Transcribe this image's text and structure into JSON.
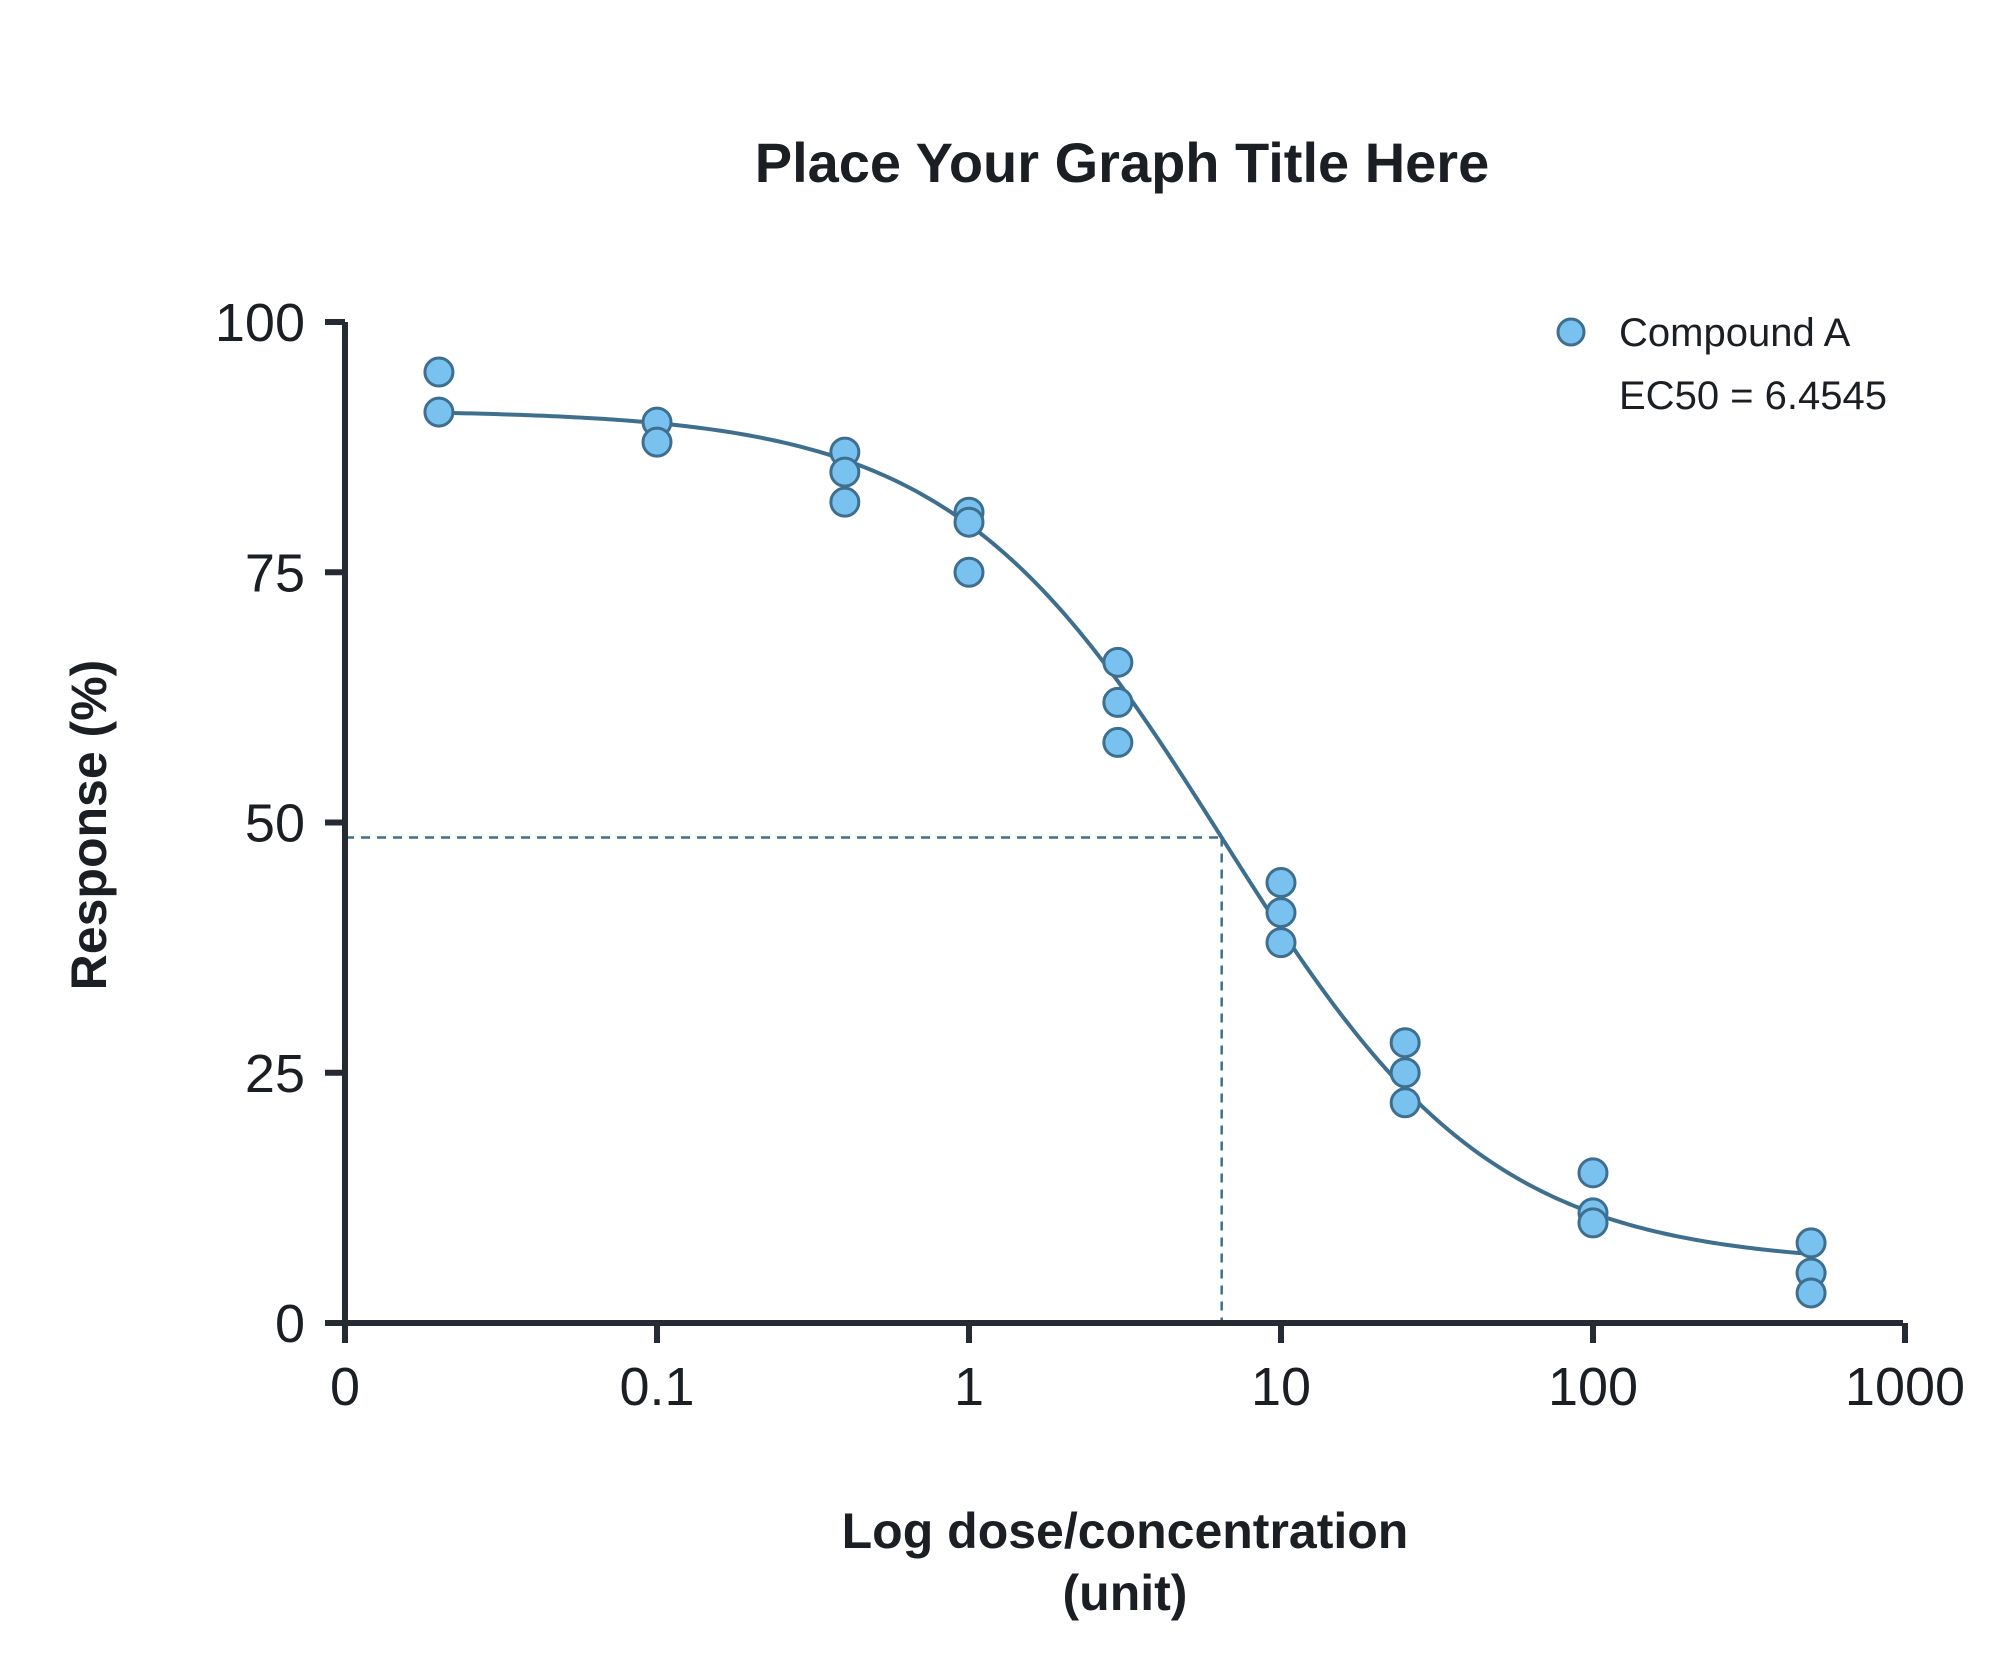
{
  "chart_data": {
    "type": "scatter",
    "title": "Place Your Graph Title Here",
    "xlabel_lines": [
      "Log dose/concentration",
      "(unit)"
    ],
    "ylabel": "Response (%)",
    "x_scale": "log",
    "x_ticks": [
      {
        "label": "0"
      },
      {
        "value": 0.1,
        "label": "0.1"
      },
      {
        "value": 1,
        "label": "1"
      },
      {
        "value": 10,
        "label": "10"
      },
      {
        "value": 100,
        "label": "100"
      },
      {
        "value": 1000,
        "label": "1000"
      }
    ],
    "ylim": [
      0,
      100
    ],
    "y_ticks": [
      0,
      25,
      50,
      75,
      100
    ],
    "grid": false,
    "legend_position": "top-right",
    "series": [
      {
        "name": "Compound A",
        "annotation": "EC50 = 6.4545",
        "color": "#79c2f0",
        "edge_color": "#3f6f8e",
        "points": [
          {
            "x": 0.02,
            "y": 95
          },
          {
            "x": 0.02,
            "y": 91
          },
          {
            "x": 0.1,
            "y": 90
          },
          {
            "x": 0.1,
            "y": 88
          },
          {
            "x": 0.4,
            "y": 87
          },
          {
            "x": 0.4,
            "y": 85
          },
          {
            "x": 0.4,
            "y": 82
          },
          {
            "x": 1,
            "y": 81
          },
          {
            "x": 1,
            "y": 80
          },
          {
            "x": 1,
            "y": 75
          },
          {
            "x": 3,
            "y": 66
          },
          {
            "x": 3,
            "y": 62
          },
          {
            "x": 3,
            "y": 58
          },
          {
            "x": 10,
            "y": 44
          },
          {
            "x": 10,
            "y": 41
          },
          {
            "x": 10,
            "y": 38
          },
          {
            "x": 25,
            "y": 28
          },
          {
            "x": 25,
            "y": 25
          },
          {
            "x": 25,
            "y": 22
          },
          {
            "x": 100,
            "y": 15
          },
          {
            "x": 100,
            "y": 11
          },
          {
            "x": 100,
            "y": 10
          },
          {
            "x": 500,
            "y": 8
          },
          {
            "x": 500,
            "y": 5
          },
          {
            "x": 500,
            "y": 3
          }
        ],
        "fit": {
          "model": "4PL",
          "top": 91.2,
          "bottom": 5.8,
          "ec50": 6.4545,
          "hill_slope": 1.0,
          "x_range": [
            0.02,
            500
          ]
        },
        "ec50_marker": {
          "x": 6.4545,
          "y": 48.5
        }
      }
    ]
  }
}
